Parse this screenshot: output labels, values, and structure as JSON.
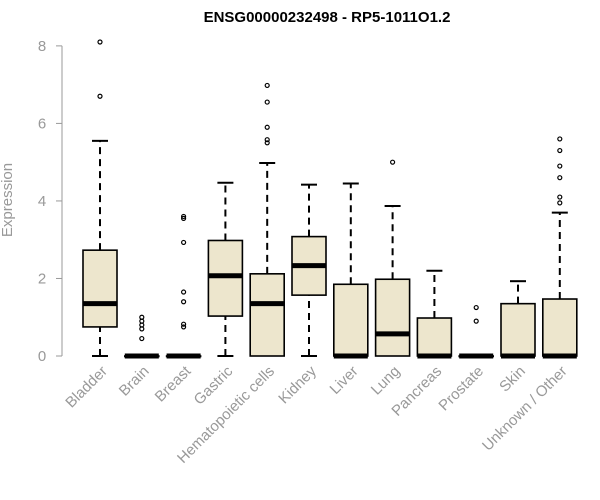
{
  "chart_data": {
    "type": "boxplot",
    "title": "ENSG00000232498 - RP5-1011O1.2",
    "ylabel": "Expression",
    "xlabel": "",
    "ylim": [
      0,
      8.2
    ],
    "yticks": [
      0,
      2,
      4,
      6,
      8
    ],
    "grid": false,
    "legend": "none",
    "categories": [
      "Bladder",
      "Brain",
      "Breast",
      "Gastric",
      "Hematopoietic cells",
      "Kidney",
      "Liver",
      "Lung",
      "Pancreas",
      "Prostate",
      "Skin",
      "Unknown / Other"
    ],
    "boxes": [
      {
        "whisker_low": 0,
        "q1": 0.75,
        "median": 1.35,
        "q3": 2.73,
        "whisker_high": 5.55,
        "outliers": [
          6.7,
          8.1
        ]
      },
      {
        "whisker_low": 0,
        "q1": 0,
        "median": 0,
        "q3": 0,
        "whisker_high": 0,
        "outliers": [
          0.45,
          0.7,
          0.8,
          0.9,
          1.0
        ]
      },
      {
        "whisker_low": 0,
        "q1": 0,
        "median": 0,
        "q3": 0,
        "whisker_high": 0,
        "outliers": [
          0.75,
          0.82,
          1.4,
          1.65,
          2.93,
          3.55,
          3.6
        ]
      },
      {
        "whisker_low": 0,
        "q1": 1.03,
        "median": 2.07,
        "q3": 2.98,
        "whisker_high": 4.47,
        "outliers": []
      },
      {
        "whisker_low": 0,
        "q1": 0,
        "median": 1.35,
        "q3": 2.12,
        "whisker_high": 4.98,
        "outliers": [
          5.5,
          5.58,
          5.9,
          6.55,
          6.98
        ]
      },
      {
        "whisker_low": 0,
        "q1": 1.57,
        "median": 2.33,
        "q3": 3.08,
        "whisker_high": 4.42,
        "outliers": []
      },
      {
        "whisker_low": 0,
        "q1": 0,
        "median": 0,
        "q3": 1.85,
        "whisker_high": 4.45,
        "outliers": []
      },
      {
        "whisker_low": 0,
        "q1": 0,
        "median": 0.57,
        "q3": 1.98,
        "whisker_high": 3.87,
        "outliers": [
          5.0
        ]
      },
      {
        "whisker_low": 0,
        "q1": 0,
        "median": 0,
        "q3": 0.98,
        "whisker_high": 2.2,
        "outliers": []
      },
      {
        "whisker_low": 0,
        "q1": 0,
        "median": 0,
        "q3": 0,
        "whisker_high": 0,
        "outliers": [
          0.9,
          1.25
        ]
      },
      {
        "whisker_low": 0,
        "q1": 0,
        "median": 0,
        "q3": 1.35,
        "whisker_high": 1.93,
        "outliers": []
      },
      {
        "whisker_low": 0,
        "q1": 0,
        "median": 0,
        "q3": 1.47,
        "whisker_high": 3.7,
        "outliers": [
          3.95,
          4.1,
          4.6,
          4.9,
          5.3,
          5.6
        ]
      }
    ],
    "colors": {
      "box_fill": "#ede6cd",
      "box_stroke": "#000000",
      "axis": "#999999",
      "title": "#000000"
    }
  }
}
